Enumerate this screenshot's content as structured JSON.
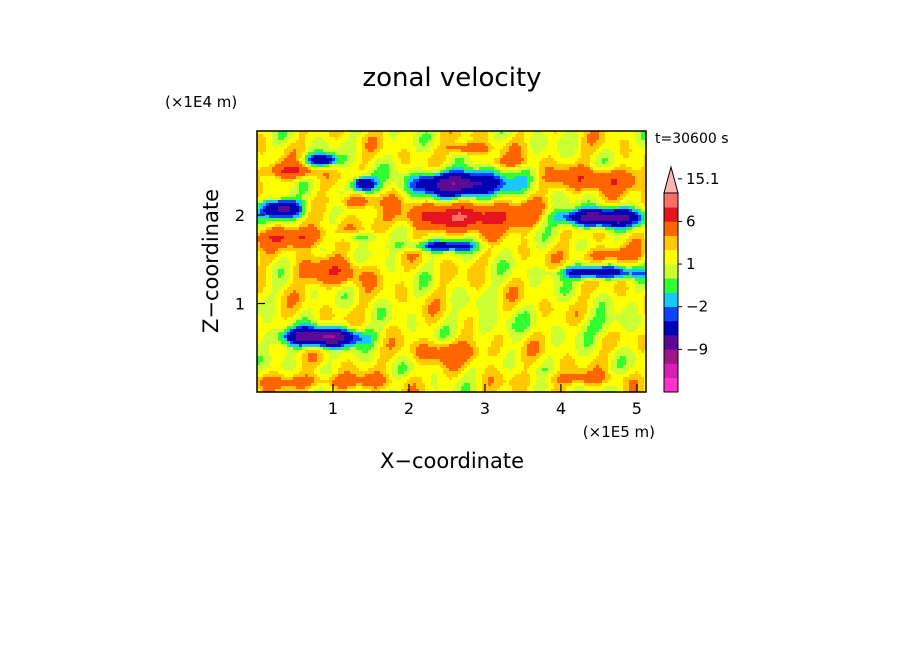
{
  "chart_data": {
    "type": "heatmap",
    "title": "zonal velocity",
    "xlabel": "X−coordinate",
    "ylabel": "Z−coordinate",
    "x_unit": "(×1E5 m)",
    "y_unit": "(×1E4 m)",
    "time_label": "t=30600 s",
    "xlim": [
      0,
      5.12
    ],
    "ylim": [
      0,
      2.95
    ],
    "x_ticks": [
      1,
      2,
      3,
      4,
      5
    ],
    "x_tick_labels": [
      "1",
      "2",
      "3",
      "4",
      "5"
    ],
    "y_ticks": [
      1,
      2
    ],
    "y_tick_labels": [
      "1",
      "2"
    ],
    "colorbar": {
      "levels": [
        -15,
        -12,
        -9,
        -6,
        -3,
        -2,
        -1,
        0,
        1,
        2,
        3,
        6,
        9,
        12,
        15.1
      ],
      "colors": [
        "#ff33cc",
        "#d81fb3",
        "#a0148c",
        "#5a0a96",
        "#0000b4",
        "#0a46ff",
        "#19c8ff",
        "#32ff32",
        "#ccff33",
        "#ffff00",
        "#ffc800",
        "#ff6600",
        "#e6141e",
        "#ff6e64",
        "#ffb4b4"
      ],
      "labels": [
        {
          "value": 15.1,
          "text": "15.1"
        },
        {
          "value": 6,
          "text": "6"
        },
        {
          "value": 1,
          "text": "1"
        },
        {
          "value": -2,
          "text": "−2"
        },
        {
          "value": -9,
          "text": "−9"
        }
      ]
    },
    "features": [
      {
        "x": 0.85,
        "z": 0.62,
        "sx": 0.48,
        "sz": 0.1,
        "amp": -11
      },
      {
        "x": 2.7,
        "z": 2.35,
        "sx": 0.6,
        "sz": 0.14,
        "amp": -10
      },
      {
        "x": 1.4,
        "z": 2.35,
        "sx": 0.15,
        "sz": 0.08,
        "amp": -8
      },
      {
        "x": 0.35,
        "z": 2.07,
        "sx": 0.25,
        "sz": 0.1,
        "amp": -9
      },
      {
        "x": 0.85,
        "z": 2.62,
        "sx": 0.2,
        "sz": 0.07,
        "amp": -7
      },
      {
        "x": 4.5,
        "z": 1.97,
        "sx": 0.55,
        "sz": 0.1,
        "amp": -10
      },
      {
        "x": 4.5,
        "z": 1.35,
        "sx": 0.5,
        "sz": 0.07,
        "amp": -7
      },
      {
        "x": 2.45,
        "z": 1.65,
        "sx": 0.5,
        "sz": 0.06,
        "amp": -5
      },
      {
        "x": 1.25,
        "z": 1.75,
        "sx": 0.4,
        "sz": 0.06,
        "amp": -3
      },
      {
        "x": 3.1,
        "z": 0.75,
        "sx": 0.35,
        "sz": 0.12,
        "amp": -1.5
      },
      {
        "x": 4.6,
        "z": 0.75,
        "sx": 0.4,
        "sz": 0.12,
        "amp": -1.5
      },
      {
        "x": 2.8,
        "z": 1.98,
        "sx": 0.85,
        "sz": 0.14,
        "amp": 7
      },
      {
        "x": 4.5,
        "z": 2.4,
        "sx": 0.65,
        "sz": 0.12,
        "amp": 4
      },
      {
        "x": 0.55,
        "z": 1.75,
        "sx": 0.55,
        "sz": 0.1,
        "amp": 5
      },
      {
        "x": 0.45,
        "z": 2.5,
        "sx": 0.3,
        "sz": 0.08,
        "amp": 5
      },
      {
        "x": 1.0,
        "z": 1.35,
        "sx": 0.45,
        "sz": 0.14,
        "amp": 3.5
      },
      {
        "x": 2.6,
        "z": 0.45,
        "sx": 0.5,
        "sz": 0.12,
        "amp": 3
      },
      {
        "x": 2.8,
        "z": 2.75,
        "sx": 0.25,
        "sz": 0.06,
        "amp": 4
      },
      {
        "x": 4.6,
        "z": 1.55,
        "sx": 0.4,
        "sz": 0.08,
        "amp": 3
      },
      {
        "x": 1.3,
        "z": 2.15,
        "sx": 0.3,
        "sz": 0.07,
        "amp": 3
      },
      {
        "x": 3.3,
        "z": 2.6,
        "sx": 0.35,
        "sz": 0.06,
        "amp": 2
      },
      {
        "x": 0.9,
        "z": 0.12,
        "sx": 0.9,
        "sz": 0.08,
        "amp": 2.5
      },
      {
        "x": 4.2,
        "z": 0.15,
        "sx": 0.6,
        "sz": 0.07,
        "amp": 2
      }
    ],
    "background_value": 1.5
  }
}
